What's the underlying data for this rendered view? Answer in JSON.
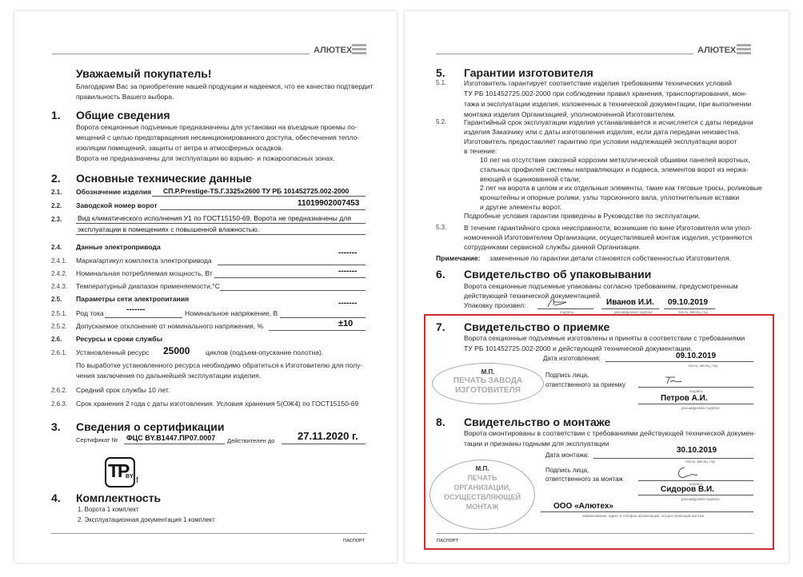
{
  "brand": {
    "name": "АЛЮТЕХ",
    "footer": "ПАСПОРТ"
  },
  "left_page": {
    "greeting": {
      "title": "Уважаемый покупатель!",
      "lines": [
        "Благодарим Вас за приобретение нашей продукции и надеемся, что ее качество подтвердит",
        "правильность Вашего выбора."
      ]
    },
    "s1": {
      "num": "1.",
      "title": "Общие сведения",
      "lines": [
        "Ворота секционные подъемные предназначены для установки на въездные проемы по-",
        "мещений с целью предотвращения несанкционированного доступа, обеспечения тепло-",
        "изоляции помещений, защиты от ветра и атмосферных осадков."
      ],
      "note": "Ворота не предназначены для эксплуатации во взрыво- и пожароопасных зонах."
    },
    "s2": {
      "num": "2.",
      "title": "Основные технические данные",
      "r21": {
        "num": "2.1.",
        "label": "Обозначение изделия",
        "value": "СП.Р.Prestige-TS.Г.3325x2600 ТУ РБ 101452725.002-2000"
      },
      "r22": {
        "num": "2.2.",
        "label": "Заводской номер ворот",
        "value": "11019902007453"
      },
      "r23": {
        "num": "2.3.",
        "lines": [
          "Вид климатического исполнения У1 по ГОСТ15150-69. Ворота не предназначены для",
          "эксплуатации в помещениях с повышенной влажностью."
        ]
      },
      "r24": {
        "num": "2.4.",
        "label": "Данные электропривода"
      },
      "r241": {
        "num": "2.4.1.",
        "label": "Марка/артикул комплекта электропривода",
        "value": "-------"
      },
      "r242": {
        "num": "2.4.2.",
        "label": "Номинальная потребляемая мощность, Вт",
        "value": "-------"
      },
      "r243": {
        "num": "2.4.3.",
        "label": "Температурный диапазон применяемости,°С"
      },
      "r25": {
        "num": "2.5.",
        "label": "Параметры сети электропитания"
      },
      "r251": {
        "num": "2.5.1.",
        "label": "Род тока",
        "value": "-------",
        "label2": "Номинальное напряжение, В",
        "value2": "-------"
      },
      "r252": {
        "num": "2.5.2.",
        "label": "Допускаемое отклонение от номинального напряжения, %",
        "value": "±10"
      },
      "r26": {
        "num": "2.6.",
        "label": "Ресурсы и сроки службы"
      },
      "r261": {
        "num": "2.6.1.",
        "label": "Установленный ресурс",
        "value": "25000",
        "suffix": "циклов (подъем-опускание полотна).",
        "lines": [
          "По выработке установленного ресурса необходимо обратиться к Изготовителю для полу-",
          "чения заключения по дальнейшей эксплуатации изделия."
        ]
      },
      "r262": {
        "num": "2.6.2.",
        "text": "Средний срок службы  10 лет."
      },
      "r263": {
        "num": "2.6.3.",
        "text": "Срок хранения  2 года с даты изготовления. Условия хранения 5(ОЖ4) по ГОСТ15150-69"
      }
    },
    "s3": {
      "num": "3.",
      "title": "Сведения о сертификации",
      "cert_label": "Сертификат №",
      "cert_value": "ФЦС BY.B1447.ПР07.0007",
      "valid_label": "Действителен до",
      "valid_value": "27.11.2020 г.",
      "mark": {
        "main": "TP",
        "sub": "BY",
        "f": "f"
      }
    },
    "s4": {
      "num": "4.",
      "title": "Комплектность",
      "items": [
        "1. Ворота  1 комплект",
        "2. Эксплуатационная документация  1 комплект"
      ]
    }
  },
  "right_page": {
    "s5": {
      "num": "5.",
      "title": "Гарантии изготовителя",
      "p51": {
        "num": "5.1.",
        "lines": [
          "Изготовитель гарантирует соответствие изделия требованиям технических условий",
          "ТУ РБ 101452725.002-2000 при соблюдении правил хранения, транспортирования, мон-",
          "тажа и эксплуатации изделия, изложенных в технической документации, при выполнении",
          "монтажа изделия Организацией, уполномоченной Изготовителем."
        ]
      },
      "p52": {
        "num": "5.2.",
        "lines": [
          "Гарантийный срок эксплуатации изделия устанавливается и исчисляется с даты передачи",
          "изделия Заказчику или с даты изготовления изделия, если дата передачи неизвестна.",
          "Изготовитель предоставляет гарантию при условии надлежащей эксплуатации ворот",
          "в течение:"
        ]
      },
      "ind1": [
        "10 лет на отсутствие сквозной коррозии металлической обшивки панелей воротных,",
        "стальных профилей системы направляющих и подвеса, элементов ворот из нержа-",
        "веющей и оцинкованной стали;"
      ],
      "ind2": [
        "2 лет на ворота в целом и их отдельные элементы, такие как тяговые тросы, роликовые",
        "кронштейны и опорные ролики, узлы торсионного вала, уплотнительные вставки",
        "и другие элементы ворот."
      ],
      "details": "Подробные условия гарантии приведены в Руководстве по эксплуатации.",
      "p53": {
        "num": "5.3.",
        "lines": [
          "В течение гарантийного срока неисправности, возникшие по вине Изготовителя или упол-",
          "номоченной Изготовителем Организации, осуществлявшей монтаж изделия, устраняются",
          "сотрудниками сервисной службы данной Организации."
        ]
      },
      "note_label": "Примечание:",
      "note_text": "замененные по гарантии детали становятся собственностью Изготовителя."
    },
    "s6": {
      "num": "6.",
      "title": "Свидетельство об упаковывании",
      "lines": [
        "Ворота секционные подъемные упакованы согласно требованиям, предусмотренным",
        "действующей технической документацией."
      ],
      "packer_label": "Упаковку произвел:",
      "name": "Иванов И.И.",
      "date": "09.10.2019",
      "cap_sign": "подпись",
      "cap_name": "расшифровка подписи",
      "cap_date": "число, месяц, год"
    },
    "s7": {
      "num": "7.",
      "title": "Свидетельство о приемке",
      "lines": [
        "Ворота секционные подъемные изготовлены и приняты в соответствии с требованиями",
        "ТУ РБ 101452725.002-2000 и действующей технической документации."
      ],
      "date_label": "Дата изготовления:",
      "date": "09.10.2019",
      "cap_date": "число, месяц, год",
      "sign_label": [
        "Подпись лица,",
        "ответственного за приемку"
      ],
      "cap_sign": "подпись",
      "name": "Петров А.И.",
      "cap_name": "расшифровка подписи",
      "stamp": {
        "mp": "М.П.",
        "lines": [
          "ПЕЧАТЬ ЗАВОДА",
          "ИЗГОТОВИТЕЛЯ"
        ]
      }
    },
    "s8": {
      "num": "8.",
      "title": "Свидетельство о монтаже",
      "lines": [
        "Ворота смонтированы в соответствии с требованиями действующей технической докумен-",
        "тации и признаны годными для эксплуатации"
      ],
      "date_label": "Дата монтажа:",
      "date": "30.10.2019",
      "cap_date": "число, месяц, год",
      "sign_label": [
        "Подпись лица,",
        "ответственного за монтаж"
      ],
      "cap_sign": "подпись",
      "name": "Сидоров В.И.",
      "cap_name": "расшифровка подписи",
      "org": "ООО «Алютех»",
      "cap_org": "наименование, адрес и телефон организации, осуществляющей монтаж",
      "stamp": {
        "mp": "М.П.",
        "lines": [
          "ПЕЧАТЬ",
          "ОРГАНИЗАЦИИ,",
          "ОСУЩЕСТВЛЯЮЩЕЙ",
          "МОНТАЖ"
        ]
      }
    },
    "highlight_color": "#d12a2f"
  }
}
